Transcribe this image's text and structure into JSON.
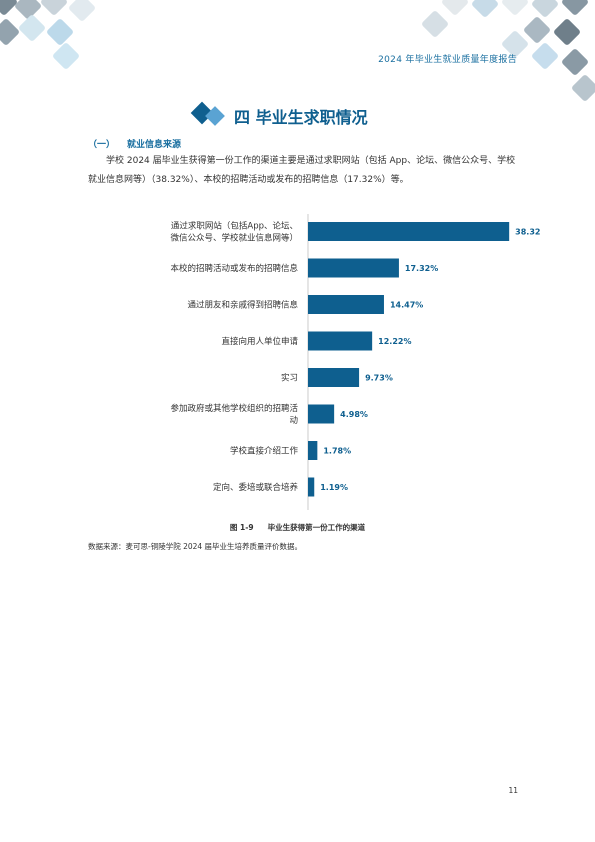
{
  "header": {
    "report_title": "2024 年毕业生就业质量年度报告"
  },
  "section": {
    "title": "四 毕业生求职情况",
    "subheading_number": "（一）",
    "subheading": "就业信息来源",
    "paragraph": "学校 2024 届毕业生获得第一份工作的渠道主要是通过求职网站（包括 App、论坛、微信公众号、学校就业信息网等）（38.32%）、本校的招聘活动或发布的招聘信息（17.32%）等。"
  },
  "chart_data": {
    "type": "bar",
    "orientation": "horizontal",
    "categories": [
      [
        "通过求职网站（包括App、论坛、",
        "微信公众号、学校就业信息网等）"
      ],
      [
        "本校的招聘活动或发布的招聘信息"
      ],
      [
        "通过朋友和亲戚得到招聘信息"
      ],
      [
        "直接向用人单位申请"
      ],
      [
        "实习"
      ],
      [
        "参加政府或其他学校组织的招聘活",
        "动"
      ],
      [
        "学校直接介绍工作"
      ],
      [
        "定向、委培或联合培养"
      ]
    ],
    "values": [
      38.32,
      17.32,
      14.47,
      12.22,
      9.73,
      4.98,
      1.78,
      1.19
    ],
    "value_labels": [
      "38.32%",
      "17.32%",
      "14.47%",
      "12.22%",
      "9.73%",
      "4.98%",
      "1.78%",
      "1.19%"
    ],
    "xlim": [
      0,
      40
    ],
    "bar_color": "#0e5f8f",
    "label_color": "#0e5f8f",
    "grid": false
  },
  "caption": {
    "figure_number": "图 1-9",
    "text": "毕业生获得第一份工作的渠道"
  },
  "source_note": "数据来源：麦可思-铜陵学院 2024 届毕业生培养质量评价数据。",
  "page_number": "11"
}
